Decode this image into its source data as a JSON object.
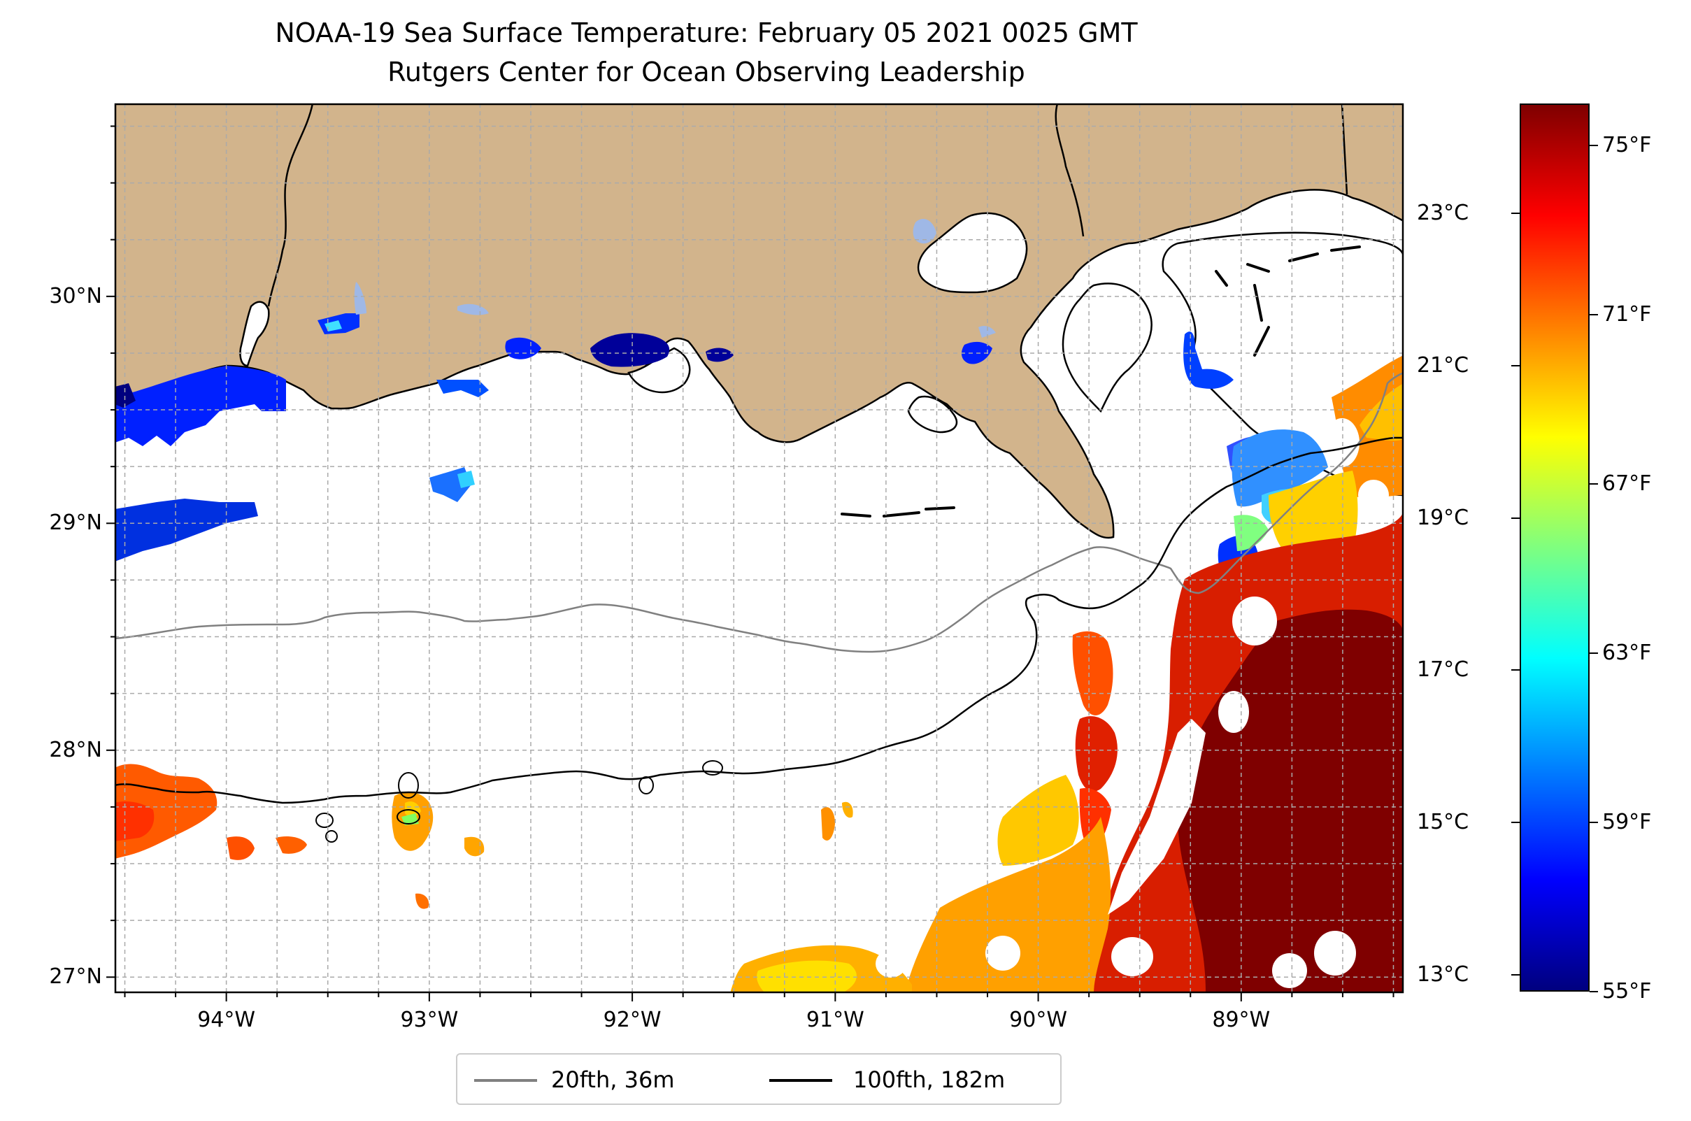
{
  "title": "NOAA-19 Sea Surface Temperature: February 05 2021 0025 GMT",
  "subtitle": "Rutgers Center for Ocean Observing Leadership",
  "map": {
    "extent": {
      "lon_min": -94.55,
      "lon_max": -88.2,
      "lat_min": 26.93,
      "lat_max": 30.85
    },
    "land_color": "#d2b48c",
    "lat_ticks": [
      {
        "value": 30,
        "label": "30°N"
      },
      {
        "value": 29,
        "label": "29°N"
      },
      {
        "value": 28,
        "label": "28°N"
      },
      {
        "value": 27,
        "label": "27°N"
      }
    ],
    "lon_ticks": [
      {
        "value": -94,
        "label": "94°W"
      },
      {
        "value": -93,
        "label": "93°W"
      },
      {
        "value": -92,
        "label": "92°W"
      },
      {
        "value": -91,
        "label": "91°W"
      },
      {
        "value": -90,
        "label": "90°W"
      },
      {
        "value": -89,
        "label": "89°W"
      }
    ],
    "gridlines": "dashed"
  },
  "colorbar": {
    "colormap": "jet",
    "colors": [
      "#00007f",
      "#0000ff",
      "#007fff",
      "#00ffff",
      "#7fff7f",
      "#ffff00",
      "#ff7f00",
      "#ff0000",
      "#7f0000"
    ],
    "fahrenheit_ticks": [
      {
        "value": 75,
        "label": "75°F"
      },
      {
        "value": 71,
        "label": "71°F"
      },
      {
        "value": 67,
        "label": "67°F"
      },
      {
        "value": 63,
        "label": "63°F"
      },
      {
        "value": 59,
        "label": "59°F"
      },
      {
        "value": 55,
        "label": "55°F"
      }
    ],
    "celsius_ticks": [
      {
        "value": 23,
        "label": "23°C"
      },
      {
        "value": 21,
        "label": "21°C"
      },
      {
        "value": 19,
        "label": "19°C"
      },
      {
        "value": 17,
        "label": "17°C"
      },
      {
        "value": 15,
        "label": "15°C"
      },
      {
        "value": 13,
        "label": "13°C"
      }
    ],
    "min_f": 55,
    "max_f": 76
  },
  "legend": {
    "items": [
      {
        "label": "20fth, 36m",
        "color": "#808080"
      },
      {
        "label": "100fth, 182m",
        "color": "#000000"
      }
    ]
  }
}
